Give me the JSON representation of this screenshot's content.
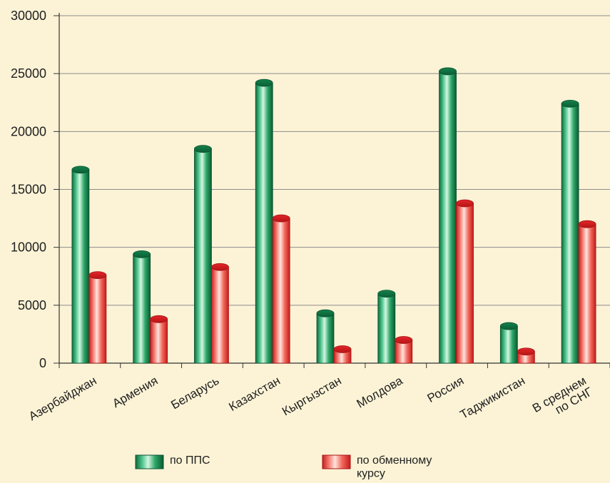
{
  "chart_data": {
    "type": "bar",
    "categories": [
      [
        "Азербайджан"
      ],
      [
        "Армения"
      ],
      [
        "Беларусь"
      ],
      [
        "Казахстан"
      ],
      [
        "Кыргызстан"
      ],
      [
        "Молдова"
      ],
      [
        "Россия"
      ],
      [
        "Таджикистан"
      ],
      [
        "В среднем",
        "по СНГ"
      ]
    ],
    "series": [
      {
        "name": "по ППС",
        "values": [
          16700,
          9400,
          18500,
          24200,
          4300,
          6000,
          25200,
          3200,
          22400
        ],
        "color": "#1f9a5c"
      },
      {
        "name": [
          "по обменному",
          "курсу"
        ],
        "values": [
          7600,
          3800,
          8300,
          12500,
          1200,
          2000,
          13800,
          1000,
          12000
        ],
        "color": "#ef4b45"
      }
    ],
    "yticks": [
      0,
      5000,
      10000,
      15000,
      20000,
      25000,
      30000
    ],
    "ylim": [
      0,
      30000
    ],
    "grid": true,
    "legend_position": "bottom",
    "background": "#fcf3d6"
  }
}
